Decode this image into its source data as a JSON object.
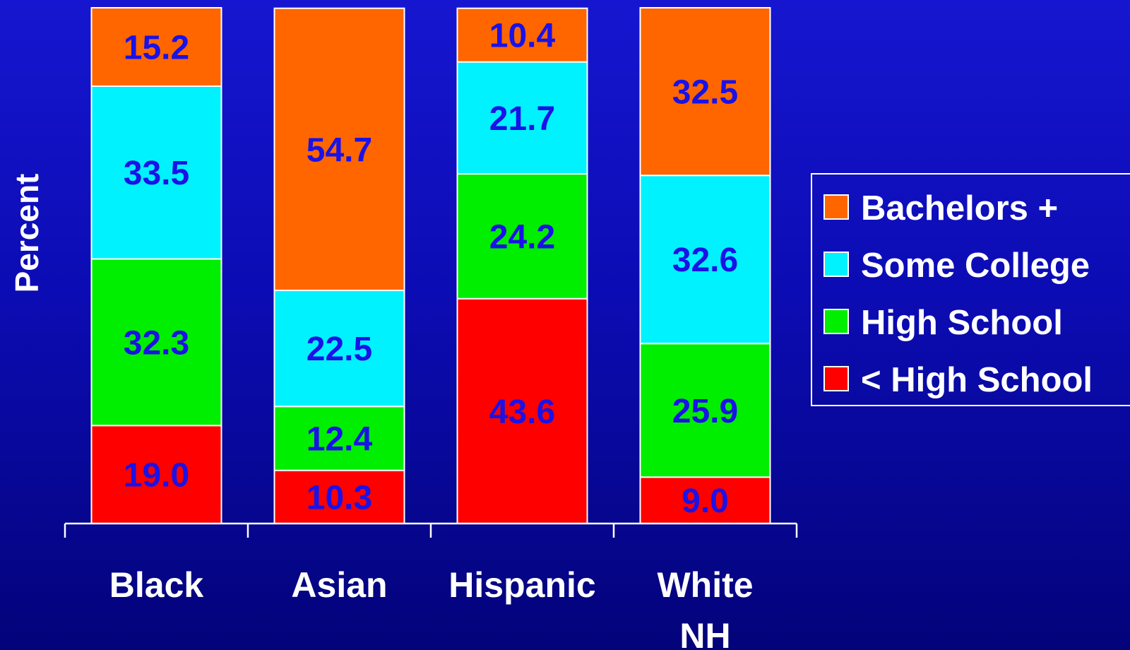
{
  "chart_data": {
    "type": "bar",
    "stacked": true,
    "ylabel": "Percent",
    "xlabel": "",
    "ylim": [
      0,
      100
    ],
    "grid": false,
    "legend_position": "right",
    "categories": [
      [
        "Black"
      ],
      [
        "Asian"
      ],
      [
        "Hispanic"
      ],
      [
        "White",
        "NH"
      ]
    ],
    "series": [
      {
        "name": "< High School",
        "color": "#ff0000",
        "values": [
          19.0,
          10.3,
          43.6,
          9.0
        ]
      },
      {
        "name": "High School",
        "color": "#00ee00",
        "values": [
          32.3,
          12.4,
          24.2,
          25.9
        ]
      },
      {
        "name": "Some College",
        "color": "#00f2ff",
        "values": [
          33.5,
          22.5,
          21.7,
          32.6
        ]
      },
      {
        "name": "Bachelors +",
        "color": "#ff6600",
        "values": [
          15.2,
          54.7,
          10.4,
          32.5
        ]
      }
    ],
    "legend_order": [
      "Bachelors +",
      "Some College",
      "High School",
      "< High School"
    ],
    "value_label_color": "#1a12e6",
    "text_color": "#ffffff"
  }
}
